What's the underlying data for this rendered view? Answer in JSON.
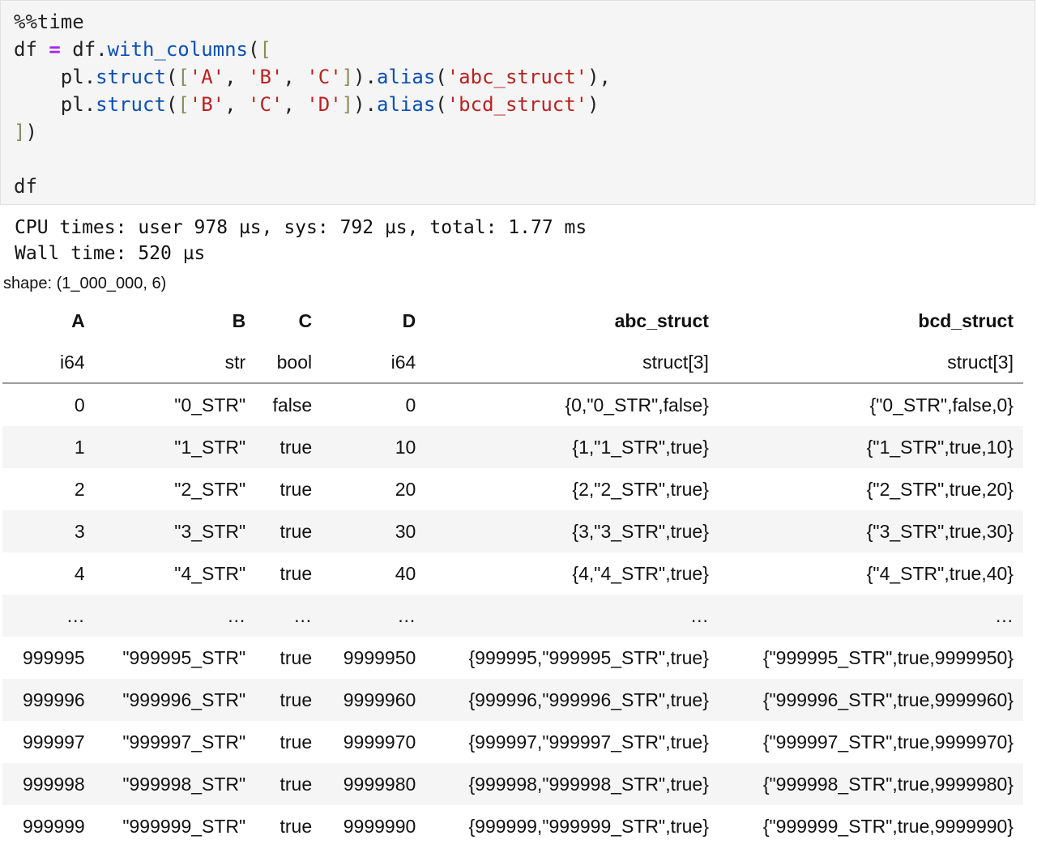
{
  "code": {
    "magic": "%%time",
    "line2": {
      "lhs": "df ",
      "op": "=",
      "obj": " df.",
      "method": "with_columns",
      "open": "(",
      "bracket": "["
    },
    "line3": {
      "indent": "    pl.",
      "fn": "struct",
      "paren": "(",
      "lbr": "[",
      "s1": "'A'",
      "sep1": ", ",
      "s2": "'B'",
      "sep2": ", ",
      "s3": "'C'",
      "rbr": "]",
      "close": ").",
      "alias": "alias",
      "ap": "(",
      "name": "'abc_struct'",
      "end": "),"
    },
    "line4": {
      "indent": "    pl.",
      "fn": "struct",
      "paren": "(",
      "lbr": "[",
      "s1": "'B'",
      "sep1": ", ",
      "s2": "'C'",
      "sep2": ", ",
      "s3": "'D'",
      "rbr": "]",
      "close": ").",
      "alias": "alias",
      "ap": "(",
      "name": "'bcd_struct'",
      "end": ")"
    },
    "line5": {
      "bracket": "]",
      "paren": ")"
    },
    "line7": "df"
  },
  "output": {
    "cpu_times": "CPU times: user 978 µs, sys: 792 µs, total: 1.77 ms",
    "wall_time": "Wall time: 520 µs",
    "shape": "shape: (1_000_000, 6)"
  },
  "table": {
    "columns": [
      {
        "name": "A",
        "dtype": "i64"
      },
      {
        "name": "B",
        "dtype": "str"
      },
      {
        "name": "C",
        "dtype": "bool"
      },
      {
        "name": "D",
        "dtype": "i64"
      },
      {
        "name": "abc_struct",
        "dtype": "struct[3]"
      },
      {
        "name": "bcd_struct",
        "dtype": "struct[3]"
      }
    ],
    "rows": [
      [
        "0",
        "\"0_STR\"",
        "false",
        "0",
        "{0,\"0_STR\",false}",
        "{\"0_STR\",false,0}"
      ],
      [
        "1",
        "\"1_STR\"",
        "true",
        "10",
        "{1,\"1_STR\",true}",
        "{\"1_STR\",true,10}"
      ],
      [
        "2",
        "\"2_STR\"",
        "true",
        "20",
        "{2,\"2_STR\",true}",
        "{\"2_STR\",true,20}"
      ],
      [
        "3",
        "\"3_STR\"",
        "true",
        "30",
        "{3,\"3_STR\",true}",
        "{\"3_STR\",true,30}"
      ],
      [
        "4",
        "\"4_STR\"",
        "true",
        "40",
        "{4,\"4_STR\",true}",
        "{\"4_STR\",true,40}"
      ],
      [
        "…",
        "…",
        "…",
        "…",
        "…",
        "…"
      ],
      [
        "999995",
        "\"999995_STR\"",
        "true",
        "9999950",
        "{999995,\"999995_STR\",true}",
        "{\"999995_STR\",true,9999950}"
      ],
      [
        "999996",
        "\"999996_STR\"",
        "true",
        "9999960",
        "{999996,\"999996_STR\",true}",
        "{\"999996_STR\",true,9999960}"
      ],
      [
        "999997",
        "\"999997_STR\"",
        "true",
        "9999970",
        "{999997,\"999997_STR\",true}",
        "{\"999997_STR\",true,9999970}"
      ],
      [
        "999998",
        "\"999998_STR\"",
        "true",
        "9999980",
        "{999998,\"999998_STR\",true}",
        "{\"999998_STR\",true,9999980}"
      ],
      [
        "999999",
        "\"999999_STR\"",
        "true",
        "9999990",
        "{999999,\"999999_STR\",true}",
        "{\"999999_STR\",true,9999990}"
      ]
    ]
  }
}
